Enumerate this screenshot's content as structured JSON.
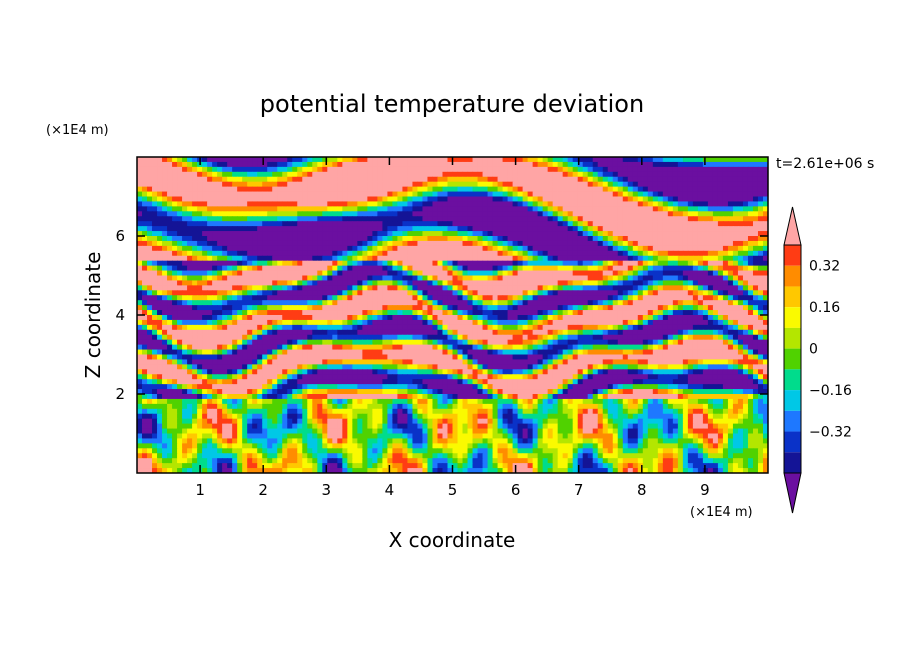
{
  "chart_data": {
    "type": "heatmap",
    "title": "potential temperature deviation",
    "xlabel": "X coordinate",
    "ylabel": "Z coordinate",
    "x_unit": "(×1E4 m)",
    "y_unit": "(×1E4 m)",
    "time_label": "t=2.61e+06 s",
    "xlim": [
      0,
      10
    ],
    "ylim": [
      0,
      8
    ],
    "x_ticks": [
      1,
      2,
      3,
      4,
      5,
      6,
      7,
      8,
      9
    ],
    "y_ticks": [
      2,
      4,
      6
    ],
    "colorbar": {
      "levels": [
        -0.48,
        -0.4,
        -0.32,
        -0.24,
        -0.16,
        -0.08,
        0,
        0.08,
        0.16,
        0.24,
        0.32,
        0.4,
        0.48
      ],
      "colors": [
        "#6b0fa0",
        "#141496",
        "#0a32c8",
        "#1e78ff",
        "#00c8e6",
        "#00dc8c",
        "#50d200",
        "#b4e600",
        "#fafa00",
        "#ffc800",
        "#ff8c00",
        "#ff3c14",
        "#ffa5a5"
      ],
      "tick_labels": [
        "0.32",
        "0.16",
        "0",
        "−0.16",
        "−0.32"
      ],
      "tick_values": [
        0.32,
        0.16,
        0,
        -0.16,
        -0.32
      ]
    },
    "regions": [
      {
        "z_range": [
          0,
          1.8
        ],
        "description": "turbulent boundary layer with mixed values between -0.32 and 0.4"
      },
      {
        "z_range": [
          1.8,
          5.5
        ],
        "description": "layered filaments alternating low (purple) and high (pink)"
      },
      {
        "z_range": [
          5.5,
          8
        ],
        "description": "large-scale bands of high (pink) and low (purple) values"
      }
    ]
  }
}
